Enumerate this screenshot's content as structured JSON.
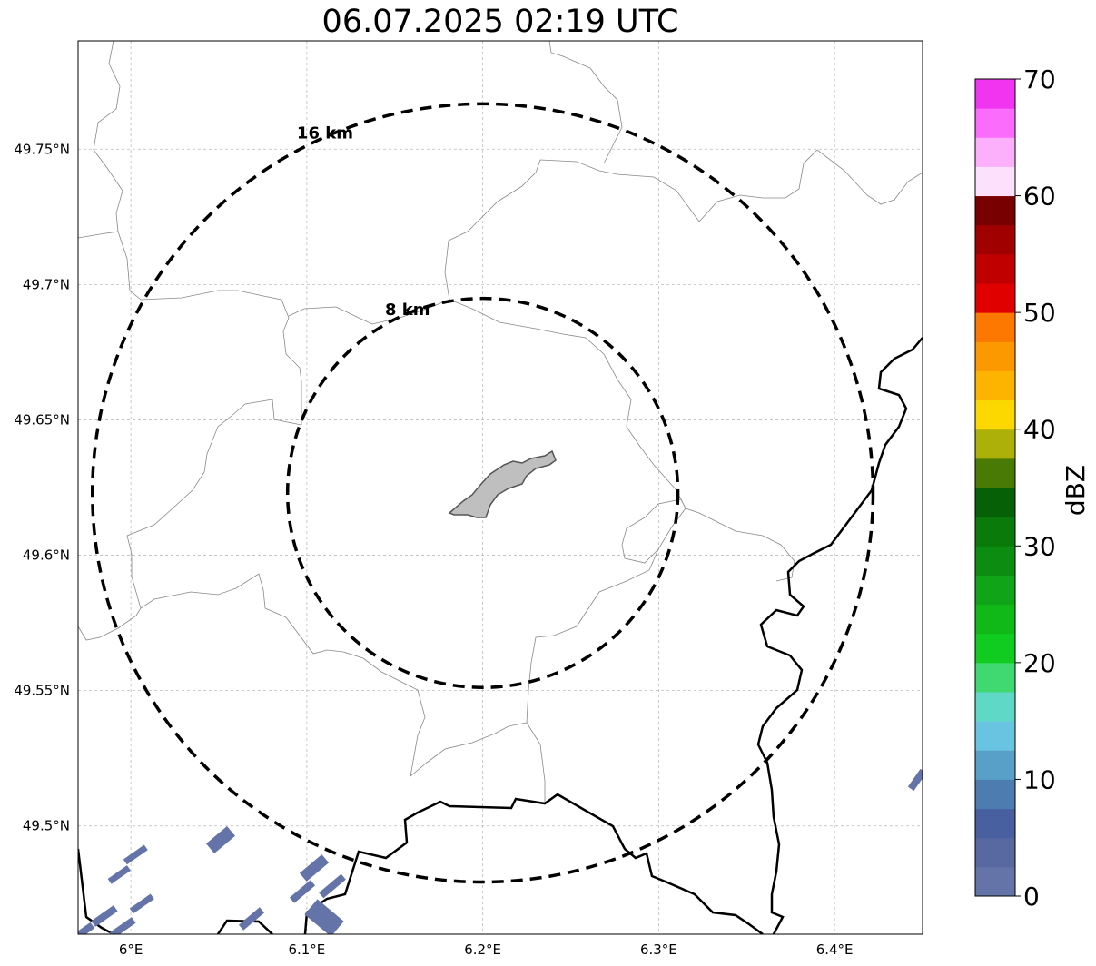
{
  "title": "06.07.2025 02:19 UTC",
  "map": {
    "lon_range": [
      5.97,
      6.45
    ],
    "lat_range": [
      49.46,
      49.79
    ],
    "x_ticks": [
      {
        "value": 6.0,
        "label": "6°E"
      },
      {
        "value": 6.1,
        "label": "6.1°E"
      },
      {
        "value": 6.2,
        "label": "6.2°E"
      },
      {
        "value": 6.3,
        "label": "6.3°E"
      },
      {
        "value": 6.4,
        "label": "6.4°E"
      }
    ],
    "y_ticks": [
      {
        "value": 49.5,
        "label": "49.5°N"
      },
      {
        "value": 49.55,
        "label": "49.55°N"
      },
      {
        "value": 49.6,
        "label": "49.6°N"
      },
      {
        "value": 49.65,
        "label": "49.65°N"
      },
      {
        "value": 49.7,
        "label": "49.7°N"
      },
      {
        "value": 49.75,
        "label": "49.75°N"
      }
    ],
    "grid": true,
    "center": {
      "lon": 6.2,
      "lat": 49.623
    },
    "rings": [
      {
        "label": "16 km",
        "radius_km": 16
      },
      {
        "label": "8 km",
        "radius_km": 8
      }
    ]
  },
  "colorbar": {
    "label": "dBZ",
    "min": 0,
    "max": 70,
    "ticks": [
      0,
      10,
      20,
      30,
      40,
      50,
      60,
      70
    ],
    "colors": [
      "#6474a8",
      "#5868a0",
      "#4860a0",
      "#4c7cb0",
      "#58a0c8",
      "#68c4e0",
      "#60d8c8",
      "#40d870",
      "#10cc20",
      "#10b818",
      "#10a418",
      "#0c8c10",
      "#0a7a0a",
      "#056006",
      "#4a7a06",
      "#acb008",
      "#fcd800",
      "#fcb400",
      "#fc9800",
      "#fc7800",
      "#e00000",
      "#c00000",
      "#a00000",
      "#780000",
      "#fde0fc",
      "#fcb0fc",
      "#fc6cfc",
      "#f034f0"
    ]
  },
  "radar_color": "#6474a8"
}
